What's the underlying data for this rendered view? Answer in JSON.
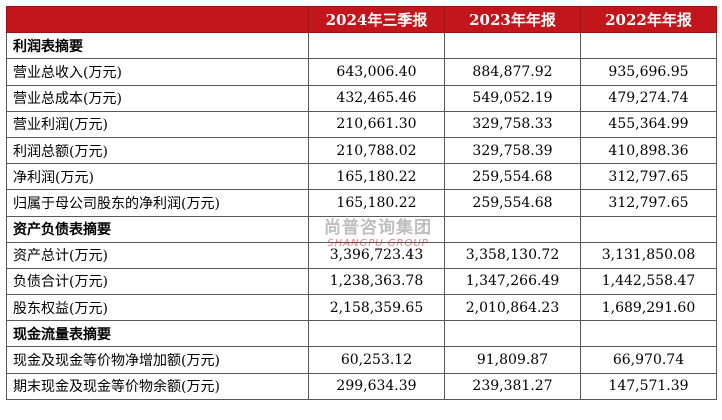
{
  "header": {
    "blank": "",
    "col1": "2024年三季报",
    "col2": "2023年年报",
    "col3": "2022年年报"
  },
  "rows": [
    {
      "type": "section",
      "label": "利润表摘要",
      "v1": "",
      "v2": "",
      "v3": ""
    },
    {
      "type": "data",
      "label": "营业总收入(万元)",
      "v1": "643,006.40",
      "v2": "884,877.92",
      "v3": "935,696.95"
    },
    {
      "type": "data",
      "label": "营业总成本(万元)",
      "v1": "432,465.46",
      "v2": "549,052.19",
      "v3": "479,274.74"
    },
    {
      "type": "data",
      "label": "营业利润(万元)",
      "v1": "210,661.30",
      "v2": "329,758.33",
      "v3": "455,364.99"
    },
    {
      "type": "data",
      "label": "利润总额(万元)",
      "v1": "210,788.02",
      "v2": "329,758.39",
      "v3": "410,898.36"
    },
    {
      "type": "data",
      "label": "净利润(万元)",
      "v1": "165,180.22",
      "v2": "259,554.68",
      "v3": "312,797.65"
    },
    {
      "type": "data",
      "label": "归属于母公司股东的净利润(万元)",
      "v1": "165,180.22",
      "v2": "259,554.68",
      "v3": "312,797.65"
    },
    {
      "type": "section",
      "label": "资产负债表摘要",
      "v1": "",
      "v2": "",
      "v3": ""
    },
    {
      "type": "data",
      "label": "资产总计(万元)",
      "v1": "3,396,723.43",
      "v2": "3,358,130.72",
      "v3": "3,131,850.08"
    },
    {
      "type": "data",
      "label": "负债合计(万元)",
      "v1": "1,238,363.78",
      "v2": "1,347,266.49",
      "v3": "1,442,558.47"
    },
    {
      "type": "data",
      "label": "股东权益(万元)",
      "v1": "2,158,359.65",
      "v2": "2,010,864.23",
      "v3": "1,689,291.60"
    },
    {
      "type": "section",
      "label": "现金流量表摘要",
      "v1": "",
      "v2": "",
      "v3": ""
    },
    {
      "type": "data",
      "label": "现金及现金等价物净增加额(万元)",
      "v1": "60,253.12",
      "v2": "91,809.87",
      "v3": "66,970.74"
    },
    {
      "type": "data",
      "label": "期末现金及现金等价物余额(万元)",
      "v1": "299,634.39",
      "v2": "239,381.27",
      "v3": "147,571.39"
    }
  ],
  "watermark": {
    "cn": "尚普咨询集团",
    "en": "SHANGPU GROUP"
  },
  "colors": {
    "header_bg": "#c3161c",
    "header_text": "#ffffff",
    "border": "#5a5a5a"
  }
}
